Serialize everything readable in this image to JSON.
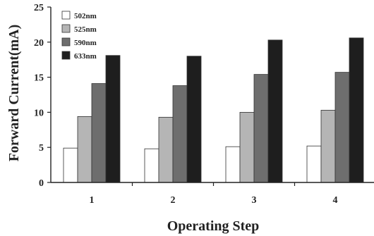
{
  "chart_data": {
    "type": "bar",
    "title": "",
    "xlabel": "Operating Step",
    "ylabel": "Forward Current(mA)",
    "categories": [
      "1",
      "2",
      "3",
      "4"
    ],
    "ylim": [
      0,
      25
    ],
    "yticks": [
      "0",
      "5",
      "10",
      "15",
      "20",
      "25"
    ],
    "grid": false,
    "legend_placement": "top-left",
    "series": [
      {
        "name": "502nm",
        "color": "#ffffff",
        "values": [
          4.9,
          4.8,
          5.1,
          5.2
        ]
      },
      {
        "name": "525nm",
        "color": "#b5b5b5",
        "values": [
          9.4,
          9.3,
          10.0,
          10.3
        ]
      },
      {
        "name": "590nm",
        "color": "#6e6e6e",
        "values": [
          14.1,
          13.8,
          15.4,
          15.7
        ]
      },
      {
        "name": "633nm",
        "color": "#1e1e1e",
        "values": [
          18.1,
          18.0,
          20.3,
          20.6
        ]
      }
    ]
  }
}
